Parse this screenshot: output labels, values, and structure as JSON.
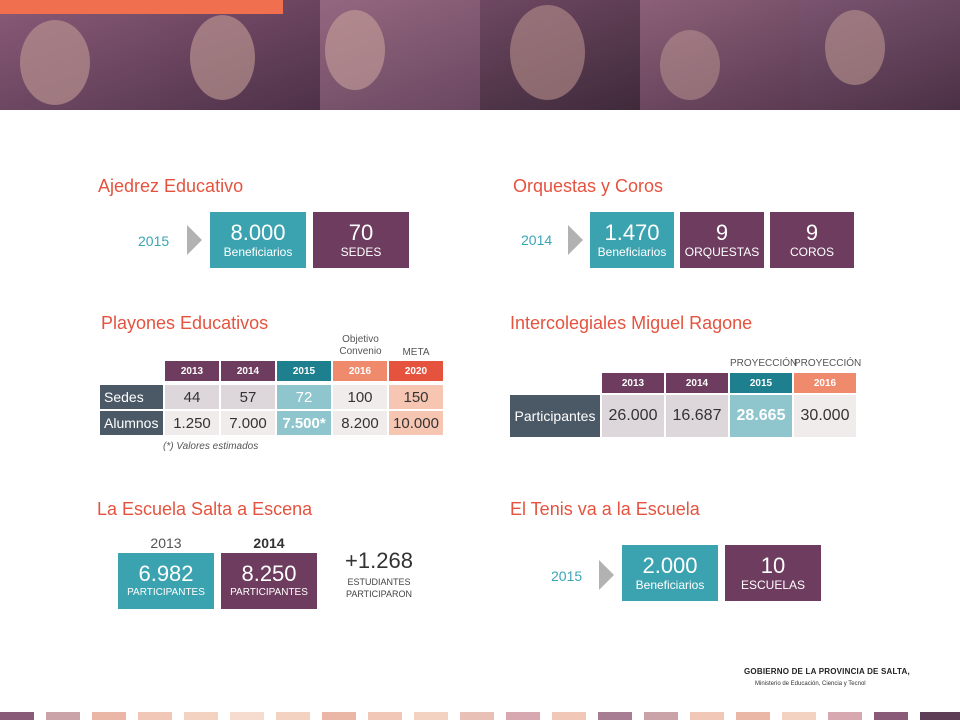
{
  "ajedrez": {
    "title": "Ajedrez Educativo",
    "year": "2015",
    "box1_value": "8.000",
    "box1_label": "Beneficiarios",
    "box2_value": "70",
    "box2_label": "SEDES"
  },
  "orquestas": {
    "title": "Orquestas y Coros",
    "year": "2014",
    "box1_value": "1.470",
    "box1_label": "Beneficiarios",
    "box2_value": "9",
    "box2_label": "ORQUESTAS",
    "box3_value": "9",
    "box3_label": "COROS"
  },
  "playones": {
    "title": "Playones Educativos",
    "objetivo_label": "Objetivo Convenio",
    "meta_label": "META",
    "headers": [
      "2013",
      "2014",
      "2015",
      "2016",
      "2020"
    ],
    "rows": [
      {
        "label": "Sedes",
        "values": [
          "44",
          "57",
          "72",
          "100",
          "150"
        ]
      },
      {
        "label": "Alumnos",
        "values": [
          "1.250",
          "7.000",
          "7.500*",
          "8.200",
          "10.000"
        ]
      }
    ],
    "note": "(*) Valores estimados"
  },
  "intercolegiales": {
    "title": "Intercolegiales Miguel Ragone",
    "proy_label_1": "PROYECCIÓN",
    "proy_label_2": "PROYECCIÓN",
    "headers": [
      "2013",
      "2014",
      "2015",
      "2016"
    ],
    "row_label": "Participantes",
    "values": [
      "26.000",
      "16.687",
      "28.665",
      "30.000"
    ]
  },
  "escena": {
    "title": "La Escuela Salta a Escena",
    "year1": "2013",
    "year2": "2014",
    "box1_value": "6.982",
    "box1_label": "PARTICIPANTES",
    "box2_value": "8.250",
    "box2_label": "PARTICIPANTES",
    "delta_value": "+1.268",
    "delta_line1": "ESTUDIANTES",
    "delta_line2": "PARTICIPARON"
  },
  "tenis": {
    "title": "El Tenis va a la Escuela",
    "year": "2015",
    "box1_value": "2.000",
    "box1_label": "Beneficiarios",
    "box2_value": "10",
    "box2_label": "ESCUELAS"
  },
  "footer": {
    "line1": "GOBIERNO DE LA PROVINCIA DE SALTA,",
    "line2": "Ministerio de Educación, Ciencia y Tecnol"
  },
  "colors": {
    "teal": "#3ba3b0",
    "plum": "#6d3c5e",
    "salmon": "#ef6f4f",
    "red": "#e5533f",
    "gray_row": "#4b5866"
  }
}
